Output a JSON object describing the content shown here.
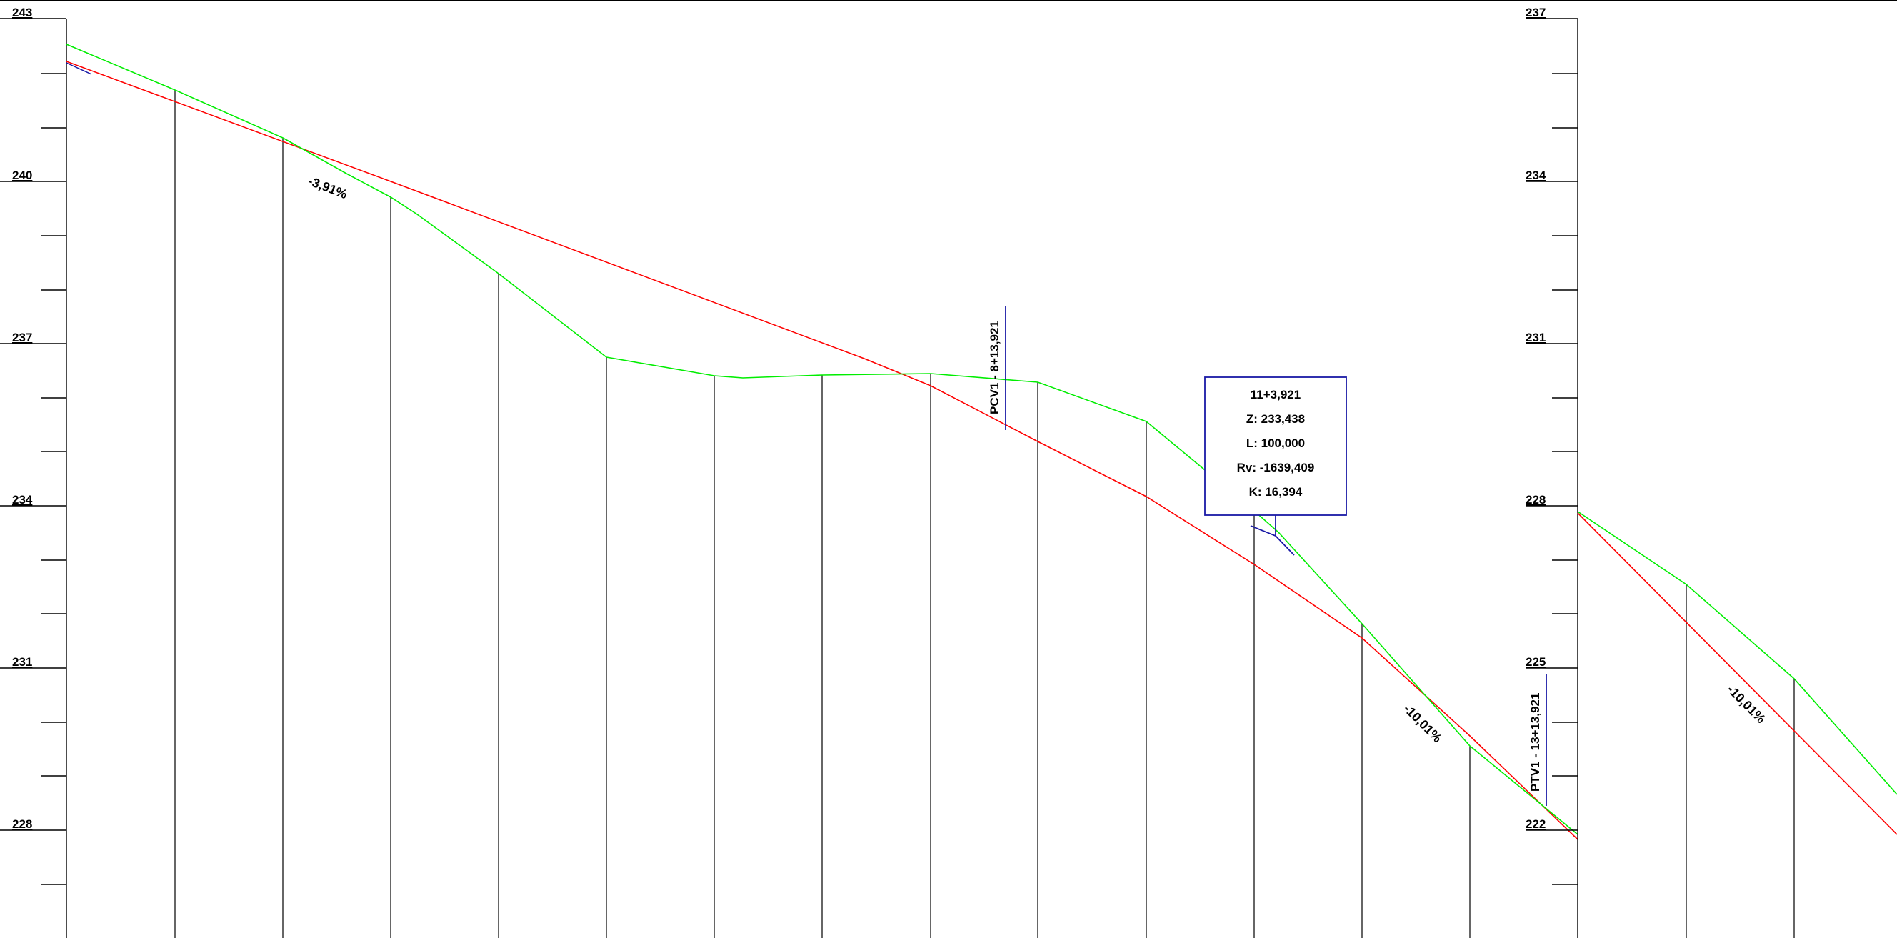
{
  "colors": {
    "terrain": "#00ee00",
    "grade": "#ff0000",
    "marker": "#1a1aa6",
    "axis": "#000000",
    "background": "#ffffff"
  },
  "panels": {
    "left": {
      "elevation_labels": [
        "243",
        "240",
        "237",
        "234",
        "231",
        "228"
      ]
    },
    "right": {
      "elevation_labels": [
        "237",
        "234",
        "231",
        "228",
        "225",
        "222"
      ]
    }
  },
  "annotations": {
    "slope_left": "-3,91%",
    "slope_mid": "-10,01%",
    "slope_right": "-10,01%",
    "pcv_label": "PCV1 - 8+13,921",
    "ptv_label": "PTV1 - 13+13,921"
  },
  "info_box": {
    "station": "11+3,921",
    "z": "Z: 233,438",
    "l": "L: 100,000",
    "rv": "Rv: -1639,409",
    "k": "K: 16,394"
  }
}
